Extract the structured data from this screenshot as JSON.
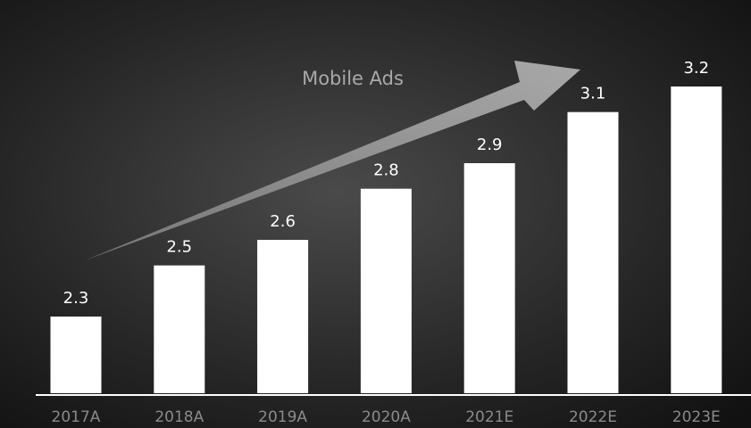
{
  "chart_data": {
    "type": "bar",
    "annotation": "Mobile Ads",
    "categories": [
      "2017A",
      "2018A",
      "2019A",
      "2020A",
      "2021E",
      "2022E",
      "2023E"
    ],
    "values": [
      2.3,
      2.5,
      2.6,
      2.8,
      2.9,
      3.1,
      3.2
    ],
    "color": "#ffffff",
    "ylim": [
      2.0,
      3.2
    ]
  }
}
